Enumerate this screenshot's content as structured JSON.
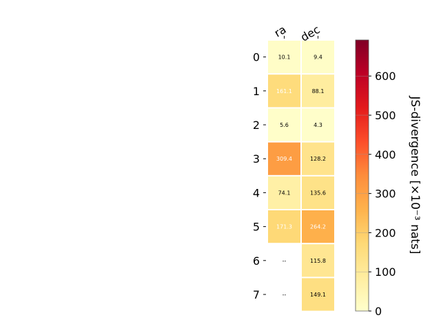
{
  "chart_data": {
    "type": "heatmap",
    "x_labels": [
      "ra",
      "dec"
    ],
    "y_labels": [
      "0",
      "1",
      "2",
      "3",
      "4",
      "5",
      "6",
      "7"
    ],
    "values": [
      [
        10.1,
        9.4
      ],
      [
        161.1,
        88.1
      ],
      [
        5.6,
        4.3
      ],
      [
        309.4,
        128.2
      ],
      [
        74.1,
        135.6
      ],
      [
        171.3,
        264.2
      ],
      [
        null,
        115.8
      ],
      [
        null,
        149.1
      ]
    ],
    "cell_labels": [
      [
        "10.1",
        "9.4"
      ],
      [
        "161.1",
        "88.1"
      ],
      [
        "5.6",
        "4.3"
      ],
      [
        "309.4",
        "128.2"
      ],
      [
        "74.1",
        "135.6"
      ],
      [
        "171.3",
        "264.2"
      ],
      [
        "--",
        "115.8"
      ],
      [
        "--",
        "149.1"
      ]
    ],
    "colorbar": {
      "label": "JS-divergence [×10⁻³ nats]",
      "ticks": [
        0,
        100,
        200,
        300,
        400,
        500,
        600
      ],
      "tick_labels": [
        "0",
        "100",
        "200",
        "300",
        "400",
        "500",
        "600"
      ],
      "range": [
        0,
        692
      ],
      "colormap": "YlOrRd"
    },
    "colors": {
      "missing": "#ffffff",
      "light_text": "#ffffff",
      "dark_text": "#000000"
    }
  }
}
